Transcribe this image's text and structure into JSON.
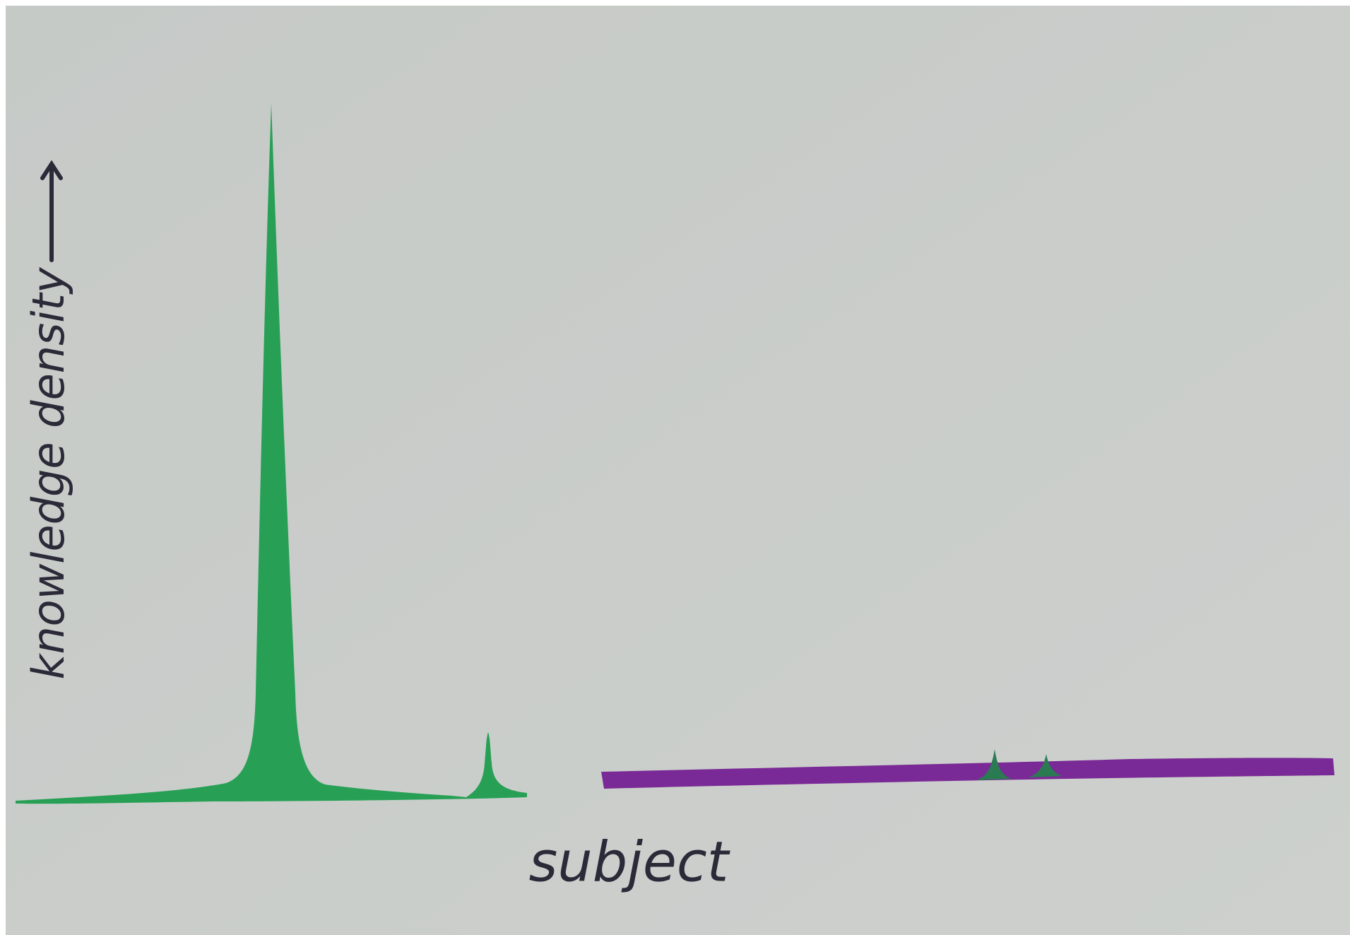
{
  "diagram": {
    "y_axis_label": "knowledge density",
    "x_axis_label": "subject"
  }
}
